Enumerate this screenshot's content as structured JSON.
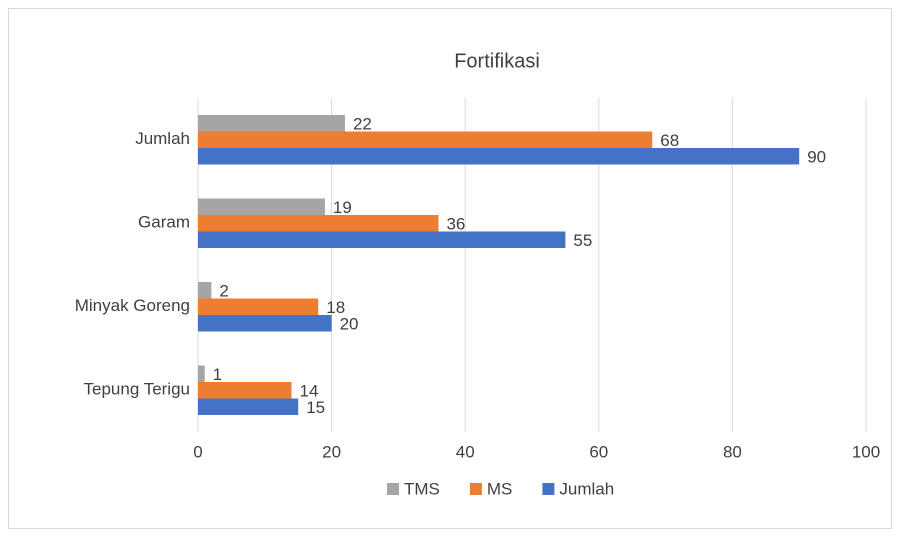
{
  "chart_data": {
    "type": "bar",
    "orientation": "horizontal",
    "title": "Fortifikasi",
    "categories": [
      "Tepung Terigu",
      "Minyak Goreng",
      "Garam",
      "Jumlah"
    ],
    "series": [
      {
        "name": "TMS",
        "color": "#a5a5a5",
        "values": [
          1,
          2,
          19,
          22
        ]
      },
      {
        "name": "MS",
        "color": "#ed7d31",
        "values": [
          14,
          18,
          36,
          68
        ]
      },
      {
        "name": "Jumlah",
        "color": "#4472c4",
        "values": [
          15,
          20,
          55,
          90
        ]
      }
    ],
    "xlim": [
      0,
      100
    ],
    "xticks": [
      0,
      20,
      40,
      60,
      80,
      100
    ],
    "grid": true,
    "legend": "bottom"
  }
}
